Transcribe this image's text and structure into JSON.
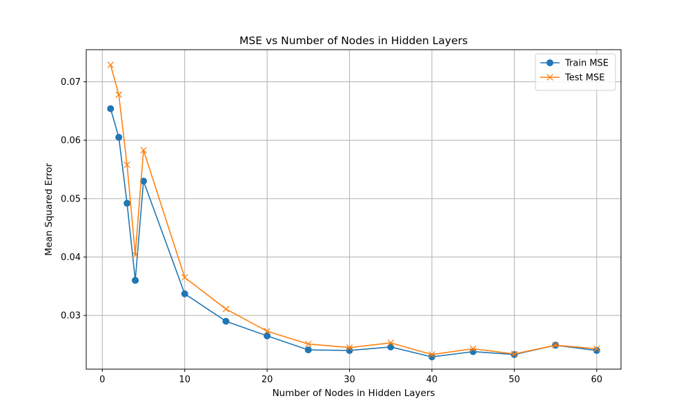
{
  "chart_data": {
    "type": "line",
    "title": "MSE vs Number of Nodes in Hidden Layers",
    "xlabel": "Number of Nodes in Hidden Layers",
    "ylabel": "Mean Squared Error",
    "x": [
      1,
      2,
      3,
      4,
      5,
      10,
      15,
      20,
      25,
      30,
      35,
      40,
      45,
      50,
      55,
      60
    ],
    "series": [
      {
        "name": "Train MSE",
        "color": "#1f77b4",
        "marker": "circle",
        "values": [
          0.0654,
          0.0605,
          0.0492,
          0.036,
          0.053,
          0.0337,
          0.029,
          0.0265,
          0.0241,
          0.024,
          0.0246,
          0.0229,
          0.0238,
          0.0233,
          0.0249,
          0.024
        ]
      },
      {
        "name": "Test MSE",
        "color": "#ff7f0e",
        "marker": "x",
        "values": [
          0.0729,
          0.0678,
          0.0558,
          0.0404,
          0.0583,
          0.0365,
          0.0311,
          0.0273,
          0.0251,
          0.0245,
          0.0253,
          0.0233,
          0.0243,
          0.0234,
          0.0249,
          0.0243
        ]
      }
    ],
    "xlim": [
      -1.95,
      62.95
    ],
    "ylim": [
      0.0208,
      0.0755
    ],
    "xticks": [
      "0",
      "10",
      "20",
      "30",
      "40",
      "50",
      "60"
    ],
    "yticks": [
      "0.03",
      "0.04",
      "0.05",
      "0.06",
      "0.07"
    ],
    "grid": true,
    "legend_position": "top-right"
  }
}
